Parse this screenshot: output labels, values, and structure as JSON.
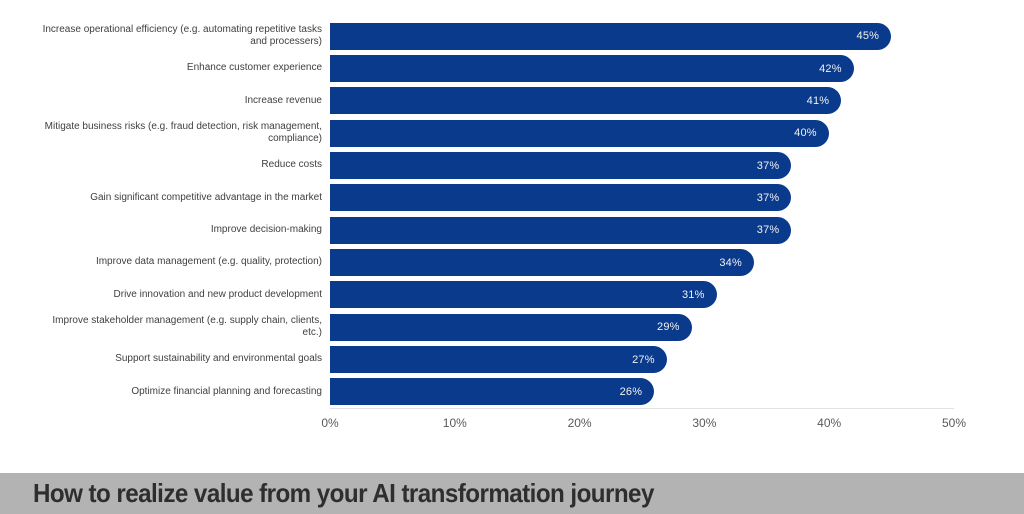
{
  "title_bar": {
    "text": "How to realize value from your AI transformation journey",
    "background": "#b3b3b3",
    "text_color": "#2e2e2e"
  },
  "chart_data": {
    "type": "bar",
    "orientation": "horizontal",
    "title": "How to realize value from your AI transformation journey",
    "categories": [
      "Increase operational efficiency (e.g. automating repetitive tasks and processers)",
      "Enhance customer experience",
      "Increase revenue",
      "Mitigate business risks (e.g. fraud detection, risk management, compliance)",
      "Reduce costs",
      "Gain significant competitive advantage in the market",
      "Improve decision-making",
      "Improve data management (e.g. quality, protection)",
      "Drive innovation and new product development",
      "Improve stakeholder management (e.g. supply chain, clients, etc.)",
      "Support sustainability and environmental goals",
      "Optimize financial planning and forecasting"
    ],
    "values": [
      45,
      42,
      41,
      40,
      37,
      37,
      37,
      34,
      31,
      29,
      27,
      26
    ],
    "value_suffix": "%",
    "x_ticks": [
      "0%",
      "10%",
      "20%",
      "30%",
      "40%",
      "50%"
    ],
    "xlim": [
      0,
      50
    ],
    "grid": false,
    "legend": false,
    "bar_color": "#0a3a8c",
    "value_label_color": "#f2f2f2",
    "category_label_color": "#404040",
    "tick_label_color": "#595959",
    "axis_line_color": "#e2e2e2"
  }
}
